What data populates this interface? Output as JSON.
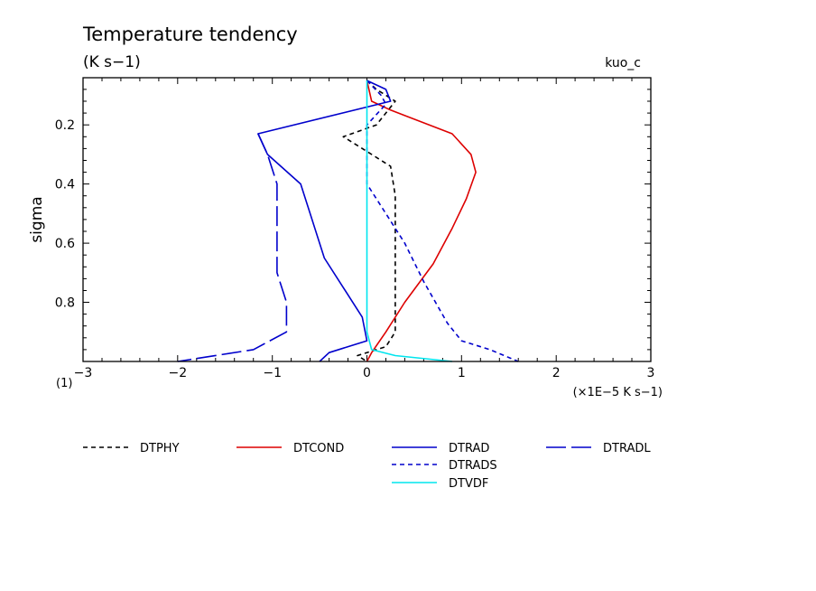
{
  "chart_data": {
    "type": "line",
    "title": "Temperature tendency",
    "subtitle": "(K s−1)",
    "case_label": "kuo_c",
    "xlabel": "(×1E−5 K s−1)",
    "ylabel": "sigma",
    "panel_label": "(1)",
    "xlim": [
      -3,
      3
    ],
    "ylim": [
      0.0405,
      1.0
    ],
    "y_inverted": true,
    "x_ticks": [
      -3,
      -2,
      -1,
      0,
      1,
      2,
      3
    ],
    "x_tick_labels": [
      "−3",
      "−2",
      "−1",
      "0",
      "1",
      "2",
      "3"
    ],
    "y_ticks": [
      0.2,
      0.4,
      0.6,
      0.8
    ],
    "y_tick_labels": [
      "0.2",
      "0.4",
      "0.6",
      "0.8"
    ],
    "grid": false,
    "legend_position": "below",
    "series": [
      {
        "name": "DTPHY",
        "color": "#000000",
        "dash": "short",
        "points": [
          [
            0.0,
            0.05
          ],
          [
            0.1,
            0.08
          ],
          [
            0.3,
            0.12
          ],
          [
            0.1,
            0.2
          ],
          [
            -0.25,
            0.24
          ],
          [
            0.0,
            0.29
          ],
          [
            0.25,
            0.34
          ],
          [
            0.3,
            0.44
          ],
          [
            0.3,
            0.6
          ],
          [
            0.3,
            0.9
          ],
          [
            0.2,
            0.95
          ],
          [
            -0.1,
            0.98
          ],
          [
            0.0,
            1.0
          ]
        ]
      },
      {
        "name": "DTCOND",
        "color": "#dd0000",
        "dash": "solid",
        "points": [
          [
            0.0,
            0.05
          ],
          [
            0.05,
            0.12
          ],
          [
            0.25,
            0.15
          ],
          [
            0.9,
            0.23
          ],
          [
            1.1,
            0.3
          ],
          [
            1.15,
            0.36
          ],
          [
            1.05,
            0.45
          ],
          [
            0.9,
            0.55
          ],
          [
            0.7,
            0.67
          ],
          [
            0.4,
            0.8
          ],
          [
            0.2,
            0.9
          ],
          [
            0.05,
            0.97
          ],
          [
            0.0,
            1.0
          ]
        ]
      },
      {
        "name": "DTRAD",
        "color": "#0000cc",
        "dash": "solid",
        "points": [
          [
            0.0,
            0.05
          ],
          [
            0.2,
            0.08
          ],
          [
            0.25,
            0.12
          ],
          [
            -1.15,
            0.23
          ],
          [
            -1.05,
            0.3
          ],
          [
            -0.7,
            0.4
          ],
          [
            -0.6,
            0.5
          ],
          [
            -0.45,
            0.65
          ],
          [
            -0.05,
            0.85
          ],
          [
            0.0,
            0.93
          ],
          [
            -0.4,
            0.97
          ],
          [
            -0.5,
            1.0
          ]
        ]
      },
      {
        "name": "DTRADL",
        "color": "#0000cc",
        "dash": "long",
        "points": [
          [
            -1.15,
            0.23
          ],
          [
            -1.05,
            0.3
          ],
          [
            -0.95,
            0.4
          ],
          [
            -0.95,
            0.5
          ],
          [
            -0.95,
            0.6
          ],
          [
            -0.95,
            0.7
          ],
          [
            -0.85,
            0.8
          ],
          [
            -0.85,
            0.9
          ],
          [
            -1.2,
            0.96
          ],
          [
            -2.0,
            1.0
          ]
        ]
      },
      {
        "name": "DTRADS",
        "color": "#0000cc",
        "dash": "short",
        "points": [
          [
            0.0,
            0.05
          ],
          [
            0.15,
            0.1
          ],
          [
            0.2,
            0.13
          ],
          [
            0.0,
            0.2
          ],
          [
            0.0,
            0.3
          ],
          [
            0.0,
            0.4
          ],
          [
            0.2,
            0.5
          ],
          [
            0.4,
            0.6
          ],
          [
            0.6,
            0.73
          ],
          [
            0.85,
            0.87
          ],
          [
            1.0,
            0.93
          ],
          [
            1.3,
            0.96
          ],
          [
            1.6,
            1.0
          ]
        ]
      },
      {
        "name": "DTVDF",
        "color": "#00e5ee",
        "dash": "solid",
        "points": [
          [
            0.0,
            0.05
          ],
          [
            0.0,
            0.3
          ],
          [
            0.0,
            0.6
          ],
          [
            0.0,
            0.9
          ],
          [
            0.05,
            0.96
          ],
          [
            0.3,
            0.98
          ],
          [
            0.9,
            1.0
          ]
        ]
      }
    ]
  }
}
